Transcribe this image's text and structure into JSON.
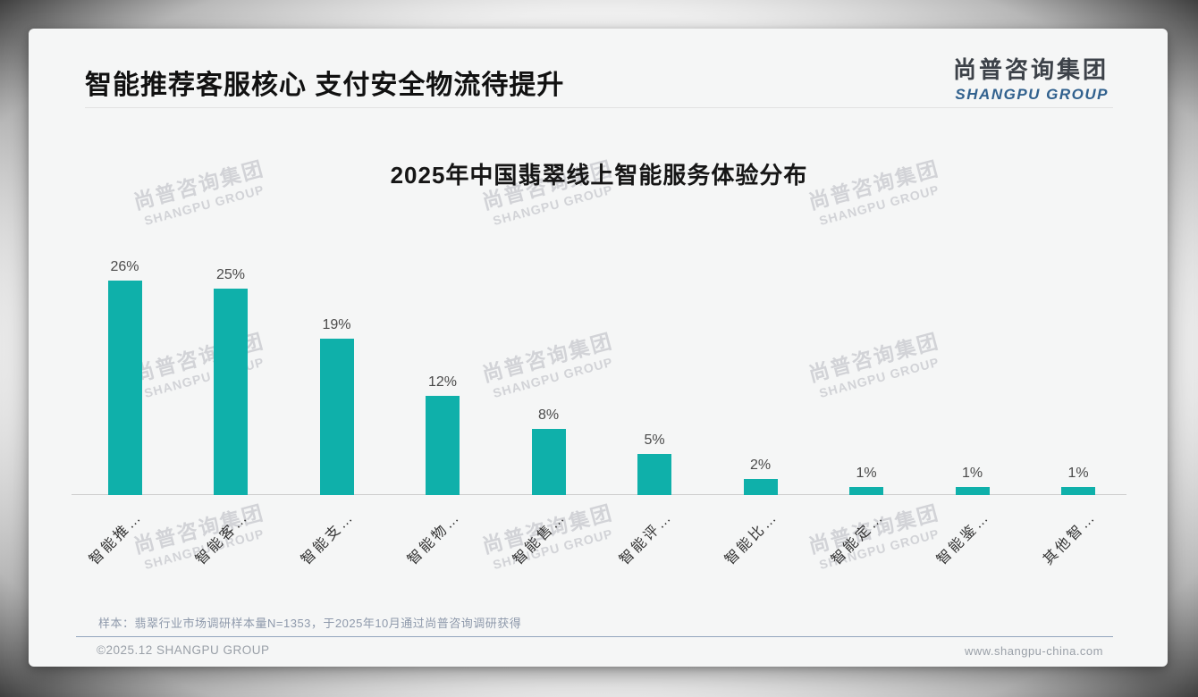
{
  "slide": {
    "header": {
      "title": "智能推荐客服核心 支付安全物流待提升"
    },
    "logo": {
      "name_zh": "尚普咨询集团",
      "name_en": "SHANGPU GROUP"
    },
    "watermark": {
      "line1": "尚普咨询集团",
      "line2": "SHANGPU GROUP"
    },
    "footnote": "样本：翡翠行业市场调研样本量N=1353，于2025年10月通过尚普咨询调研获得",
    "footer": {
      "copyright": "©2025.12 SHANGPU GROUP",
      "website": "www.shangpu-china.com"
    }
  },
  "chart_data": {
    "type": "bar",
    "title": "2025年中国翡翠线上智能服务体验分布",
    "categories": [
      "智能推…",
      "智能客…",
      "智能支…",
      "智能物…",
      "智能售…",
      "智能评…",
      "智能比…",
      "智能定…",
      "智能鉴…",
      "其他智…"
    ],
    "values": [
      26,
      25,
      19,
      12,
      8,
      5,
      2,
      1,
      1,
      1
    ],
    "value_suffix": "%",
    "ylim": [
      0,
      26
    ],
    "bar_color": "#0fb0aa",
    "value_label_color": "#4a4a4a",
    "label_rotation_deg": -45,
    "grid": false,
    "legend": "none"
  }
}
